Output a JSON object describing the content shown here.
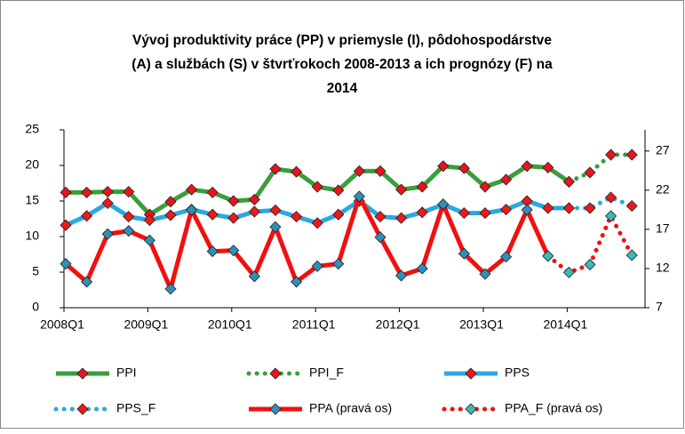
{
  "chart_data": {
    "type": "line",
    "title": [
      "Vývoj produktivity práce (PP) v priemysle (I), pôdohospodárstve",
      "(A) a službách (S) v štvrťrokoch 2008-2013  a ich prognózy (F) na",
      "2014"
    ],
    "categories": [
      "2008Q1",
      null,
      null,
      null,
      "2009Q1",
      null,
      null,
      null,
      "2010Q1",
      null,
      null,
      null,
      "2011Q1",
      null,
      null,
      null,
      "2012Q1",
      null,
      null,
      null,
      "2013Q1",
      null,
      null,
      null,
      "2014Q1",
      null,
      null,
      null
    ],
    "ylim": [
      0,
      25
    ],
    "yticks": [
      0,
      5,
      10,
      15,
      20,
      25
    ],
    "y2lim": [
      7,
      29.7
    ],
    "y2ticks": [
      7,
      12,
      17,
      22,
      27
    ],
    "grid": false,
    "series": [
      {
        "name": "PPI",
        "color": "#3a9e3a",
        "marker_color": "#e8141e",
        "dotted": false,
        "values": [
          16.2,
          16.2,
          16.3,
          16.3,
          13.1,
          14.9,
          16.6,
          16.2,
          15.0,
          15.2,
          19.5,
          19.1,
          17.0,
          16.5,
          19.2,
          19.2,
          16.6,
          17.0,
          19.9,
          19.6,
          17.0,
          18.0,
          19.9,
          19.7,
          17.7,
          null,
          null,
          null
        ]
      },
      {
        "name": "PPI_F",
        "color": "#3a9e3a",
        "marker_color": "#e8141e",
        "dotted": true,
        "values": [
          null,
          null,
          null,
          null,
          null,
          null,
          null,
          null,
          null,
          null,
          null,
          null,
          null,
          null,
          null,
          null,
          null,
          null,
          null,
          null,
          null,
          null,
          null,
          null,
          17.7,
          19.0,
          21.5,
          21.5
        ]
      },
      {
        "name": "PPS",
        "color": "#2ba8e0",
        "marker_color": "#f01818",
        "dotted": false,
        "values": [
          11.6,
          12.9,
          14.7,
          12.8,
          12.3,
          13.0,
          13.8,
          13.1,
          12.6,
          13.5,
          13.7,
          12.8,
          11.9,
          13.1,
          15.0,
          12.8,
          12.6,
          13.4,
          14.5,
          13.3,
          13.3,
          13.8,
          15.0,
          14.0,
          14.0,
          null,
          null,
          null
        ]
      },
      {
        "name": "PPS_F",
        "color": "#2ba8e0",
        "marker_color": "#f01818",
        "dotted": true,
        "values": [
          null,
          null,
          null,
          null,
          null,
          null,
          null,
          null,
          null,
          null,
          null,
          null,
          null,
          null,
          null,
          null,
          null,
          null,
          null,
          null,
          null,
          null,
          null,
          null,
          14.0,
          14.0,
          15.5,
          14.3
        ]
      },
      {
        "name": "PPA (pravá os)",
        "color": "#f01010",
        "marker_color": "#2f8fb8",
        "dotted": false,
        "axis": "y2",
        "values": [
          12.6,
          10.3,
          16.4,
          16.8,
          15.6,
          9.4,
          19.5,
          14.2,
          14.3,
          11.0,
          17.3,
          10.3,
          12.3,
          12.6,
          21.2,
          16.0,
          11.1,
          12.0,
          20.2,
          13.9,
          11.3,
          13.5,
          19.5,
          13.6,
          null,
          null,
          null,
          null
        ]
      },
      {
        "name": "PPA_F (pravá os)",
        "color": "#f01010",
        "marker_color": "#3bb8b8",
        "dotted": true,
        "axis": "y2",
        "values": [
          null,
          null,
          null,
          null,
          null,
          null,
          null,
          null,
          null,
          null,
          null,
          null,
          null,
          null,
          null,
          null,
          null,
          null,
          null,
          null,
          null,
          null,
          null,
          13.6,
          11.5,
          12.5,
          18.7,
          13.7
        ]
      }
    ]
  }
}
